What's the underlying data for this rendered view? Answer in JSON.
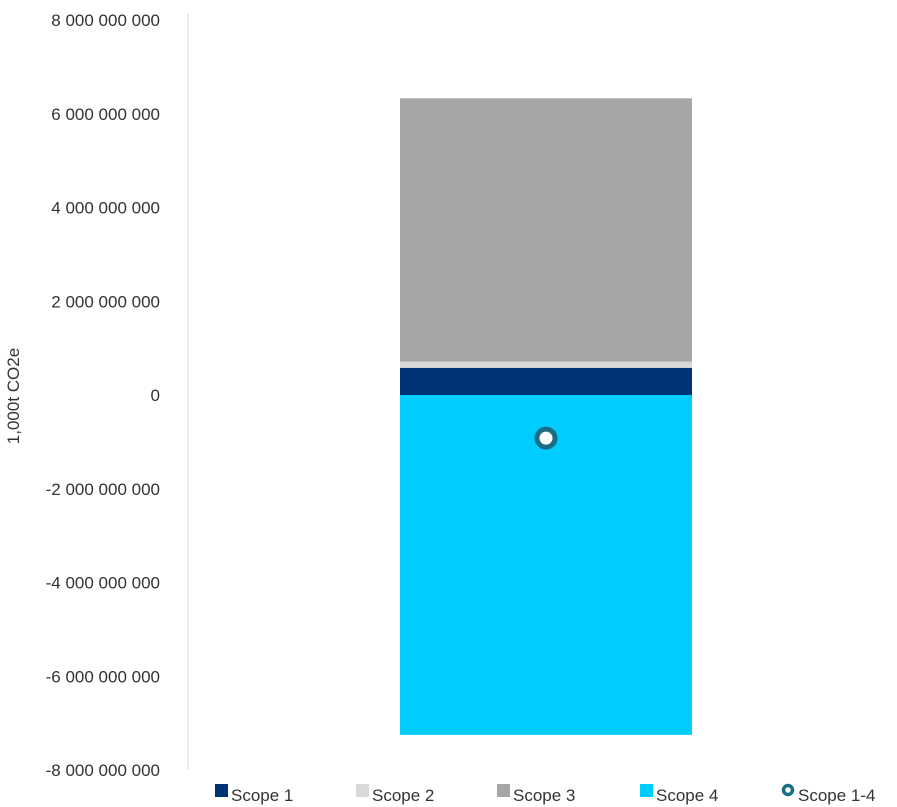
{
  "chart_data": {
    "type": "bar",
    "stacked": true,
    "ylabel": "1,000t CO2e",
    "ylim": [
      -8000000000,
      8000000000
    ],
    "yticks": [
      8000000000,
      6000000000,
      4000000000,
      2000000000,
      0,
      -2000000000,
      -4000000000,
      -6000000000,
      -8000000000
    ],
    "ytick_labels": [
      "8 000 000 000",
      "6 000 000 000",
      "4 000 000 000",
      "2 000 000 000",
      "0",
      "-2 000 000 000",
      "-4 000 000 000",
      "-6 000 000 000",
      "-8 000 000 000"
    ],
    "grid": false,
    "legend_position": "bottom",
    "series": [
      {
        "name": "Scope 1",
        "kind": "bar",
        "value": 580000000,
        "color": "#003375"
      },
      {
        "name": "Scope 2",
        "kind": "bar",
        "value": 130000000,
        "color": "#d9d9d9"
      },
      {
        "name": "Scope 3",
        "kind": "bar",
        "value": 5620000000,
        "color": "#a6a6a6"
      },
      {
        "name": "Scope 4",
        "kind": "bar",
        "value": -7250000000,
        "color": "#00ccff"
      },
      {
        "name": "Scope 1-4",
        "kind": "marker",
        "value": -920000000,
        "color": "#1a6e84"
      }
    ]
  }
}
